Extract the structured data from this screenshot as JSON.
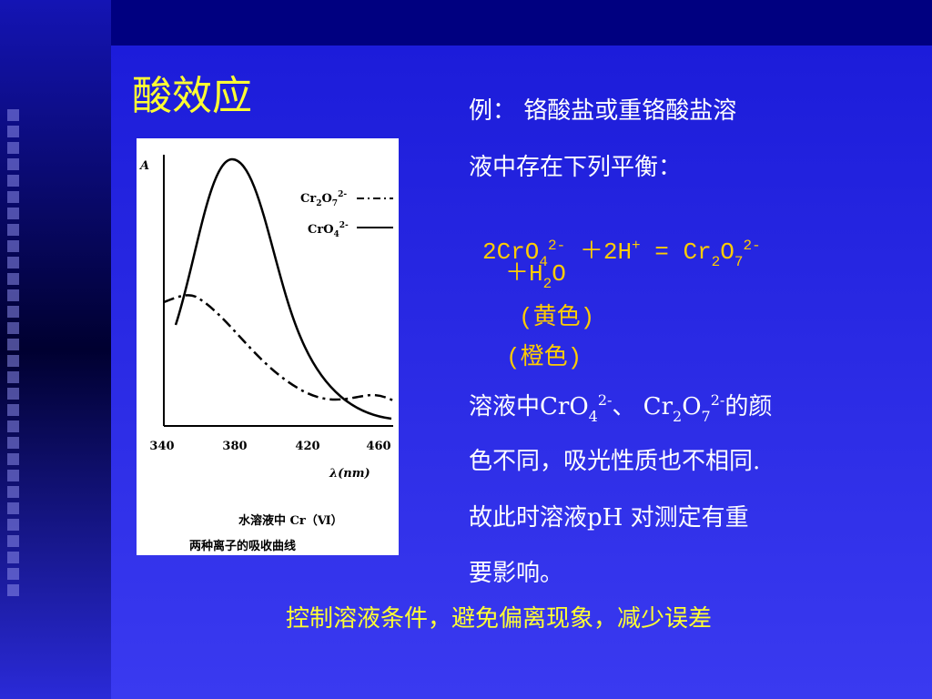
{
  "header": {
    "title": "酸效应"
  },
  "figure": {
    "y_label": "A",
    "x_label": "λ(nm)",
    "x_ticks": [
      "340",
      "380",
      "420",
      "460"
    ],
    "legend": [
      [
        "Cr",
        "2",
        "O",
        "7",
        "2-"
      ],
      [
        "CrO",
        "4",
        "2-"
      ]
    ],
    "caption": [
      "水溶液中 Cr（Ⅵ）",
      "两种离子的吸收曲线"
    ]
  },
  "body": {
    "line1": "例：  铬酸盐或重铬酸盐溶",
    "line2": "液中存在下列平衡：",
    "equation": [
      "2CrO",
      "4",
      "2-",
      "  ＋2H",
      "+",
      " =  Cr",
      "2",
      "O",
      "7",
      "2-"
    ],
    "equation2": [
      "＋H",
      "2",
      "O"
    ],
    "yellow": "(黄色)",
    "orange": "(橙色)",
    "line3": [
      "溶液中CrO",
      "4",
      "2-",
      "、 Cr",
      "2",
      "O",
      "7",
      "2-",
      "的颜"
    ],
    "line4": "色不同，吸光性质也不相同.",
    "line5": "故此时溶液pH 对测定有重",
    "line6": "要影响。"
  },
  "footer": {
    "conclusion": "控制溶液条件，避免偏离现象，减少误差"
  }
}
